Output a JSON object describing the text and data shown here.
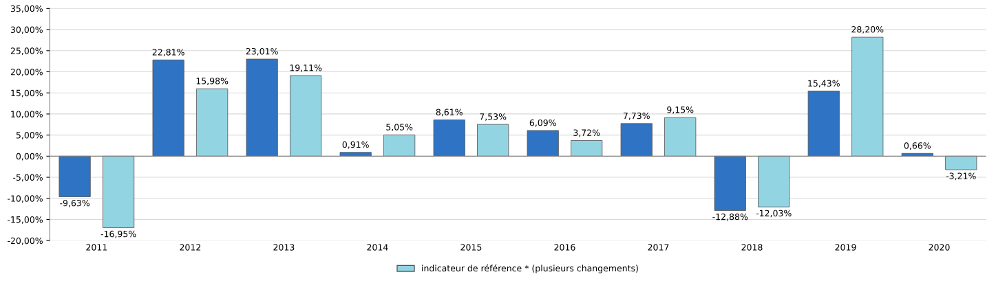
{
  "chart_data": {
    "type": "bar",
    "categories": [
      "2011",
      "2012",
      "2013",
      "2014",
      "2015",
      "2016",
      "2017",
      "2018",
      "2019",
      "2020"
    ],
    "series": [
      {
        "color": "#2f73c4",
        "values": [
          -9.63,
          22.81,
          23.01,
          0.91,
          8.61,
          6.09,
          7.73,
          -12.88,
          15.43,
          0.66
        ],
        "value_labels": [
          "-9,63%",
          "22,81%",
          "23,01%",
          "0,91%",
          "8,61%",
          "6,09%",
          "7,73%",
          "-12,88%",
          "15,43%",
          "0,66%"
        ]
      },
      {
        "name": "indicateur de référence * (plusieurs changements)",
        "color": "#93d4e2",
        "values": [
          -16.95,
          15.98,
          19.11,
          5.05,
          7.53,
          3.72,
          9.15,
          -12.03,
          28.2,
          -3.21
        ],
        "value_labels": [
          "-16,95%",
          "15,98%",
          "19,11%",
          "5,05%",
          "7,53%",
          "3,72%",
          "9,15%",
          "-12,03%",
          "28,20%",
          "-3,21%"
        ]
      }
    ],
    "ylim": [
      -20,
      35
    ],
    "yticks": [
      {
        "value": -20,
        "label": "-20,00%"
      },
      {
        "value": -15,
        "label": "-15,00%"
      },
      {
        "value": -10,
        "label": "-10,00%"
      },
      {
        "value": -5,
        "label": "-5,00%"
      },
      {
        "value": 0,
        "label": "0,00%"
      },
      {
        "value": 5,
        "label": "5,00%"
      },
      {
        "value": 10,
        "label": "10,00%"
      },
      {
        "value": 15,
        "label": "15,00%"
      },
      {
        "value": 20,
        "label": "20,00%"
      },
      {
        "value": 25,
        "label": "25,00%"
      },
      {
        "value": 30,
        "label": "30,00%"
      },
      {
        "value": 35,
        "label": "35,00%"
      }
    ],
    "grid": "y",
    "legend": "bottom"
  }
}
